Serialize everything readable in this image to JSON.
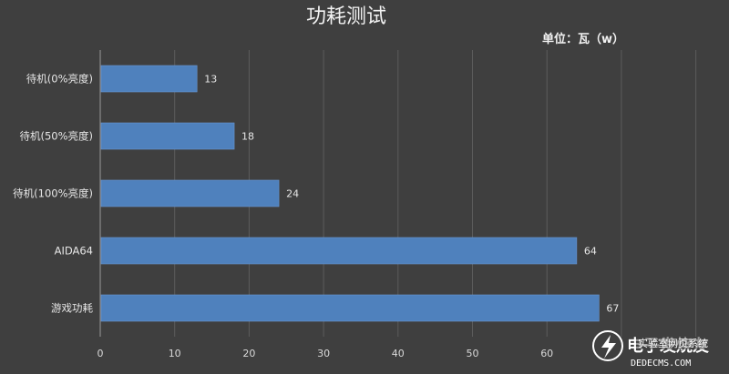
{
  "chart_data": {
    "type": "bar",
    "orientation": "horizontal",
    "title": "功耗测试",
    "unit_label": "单位：瓦（w）",
    "categories": [
      "待机(0%亮度)",
      "待机(50%亮度)",
      "待机(100%亮度)",
      "AIDA64",
      "游戏功耗"
    ],
    "values": [
      13,
      18,
      24,
      64,
      67
    ],
    "xlim": [
      0,
      80
    ],
    "x_ticks": [
      "0",
      "10",
      "20",
      "30",
      "40",
      "50",
      "60"
    ],
    "grid": "vertical",
    "bar_color": "#4f81bd",
    "background_color": "#3f3f3f"
  },
  "watermark": {
    "logo_text": "电子发烧友",
    "overlay_text": "实验室网页系统",
    "url": "DEDECMS.COM"
  }
}
